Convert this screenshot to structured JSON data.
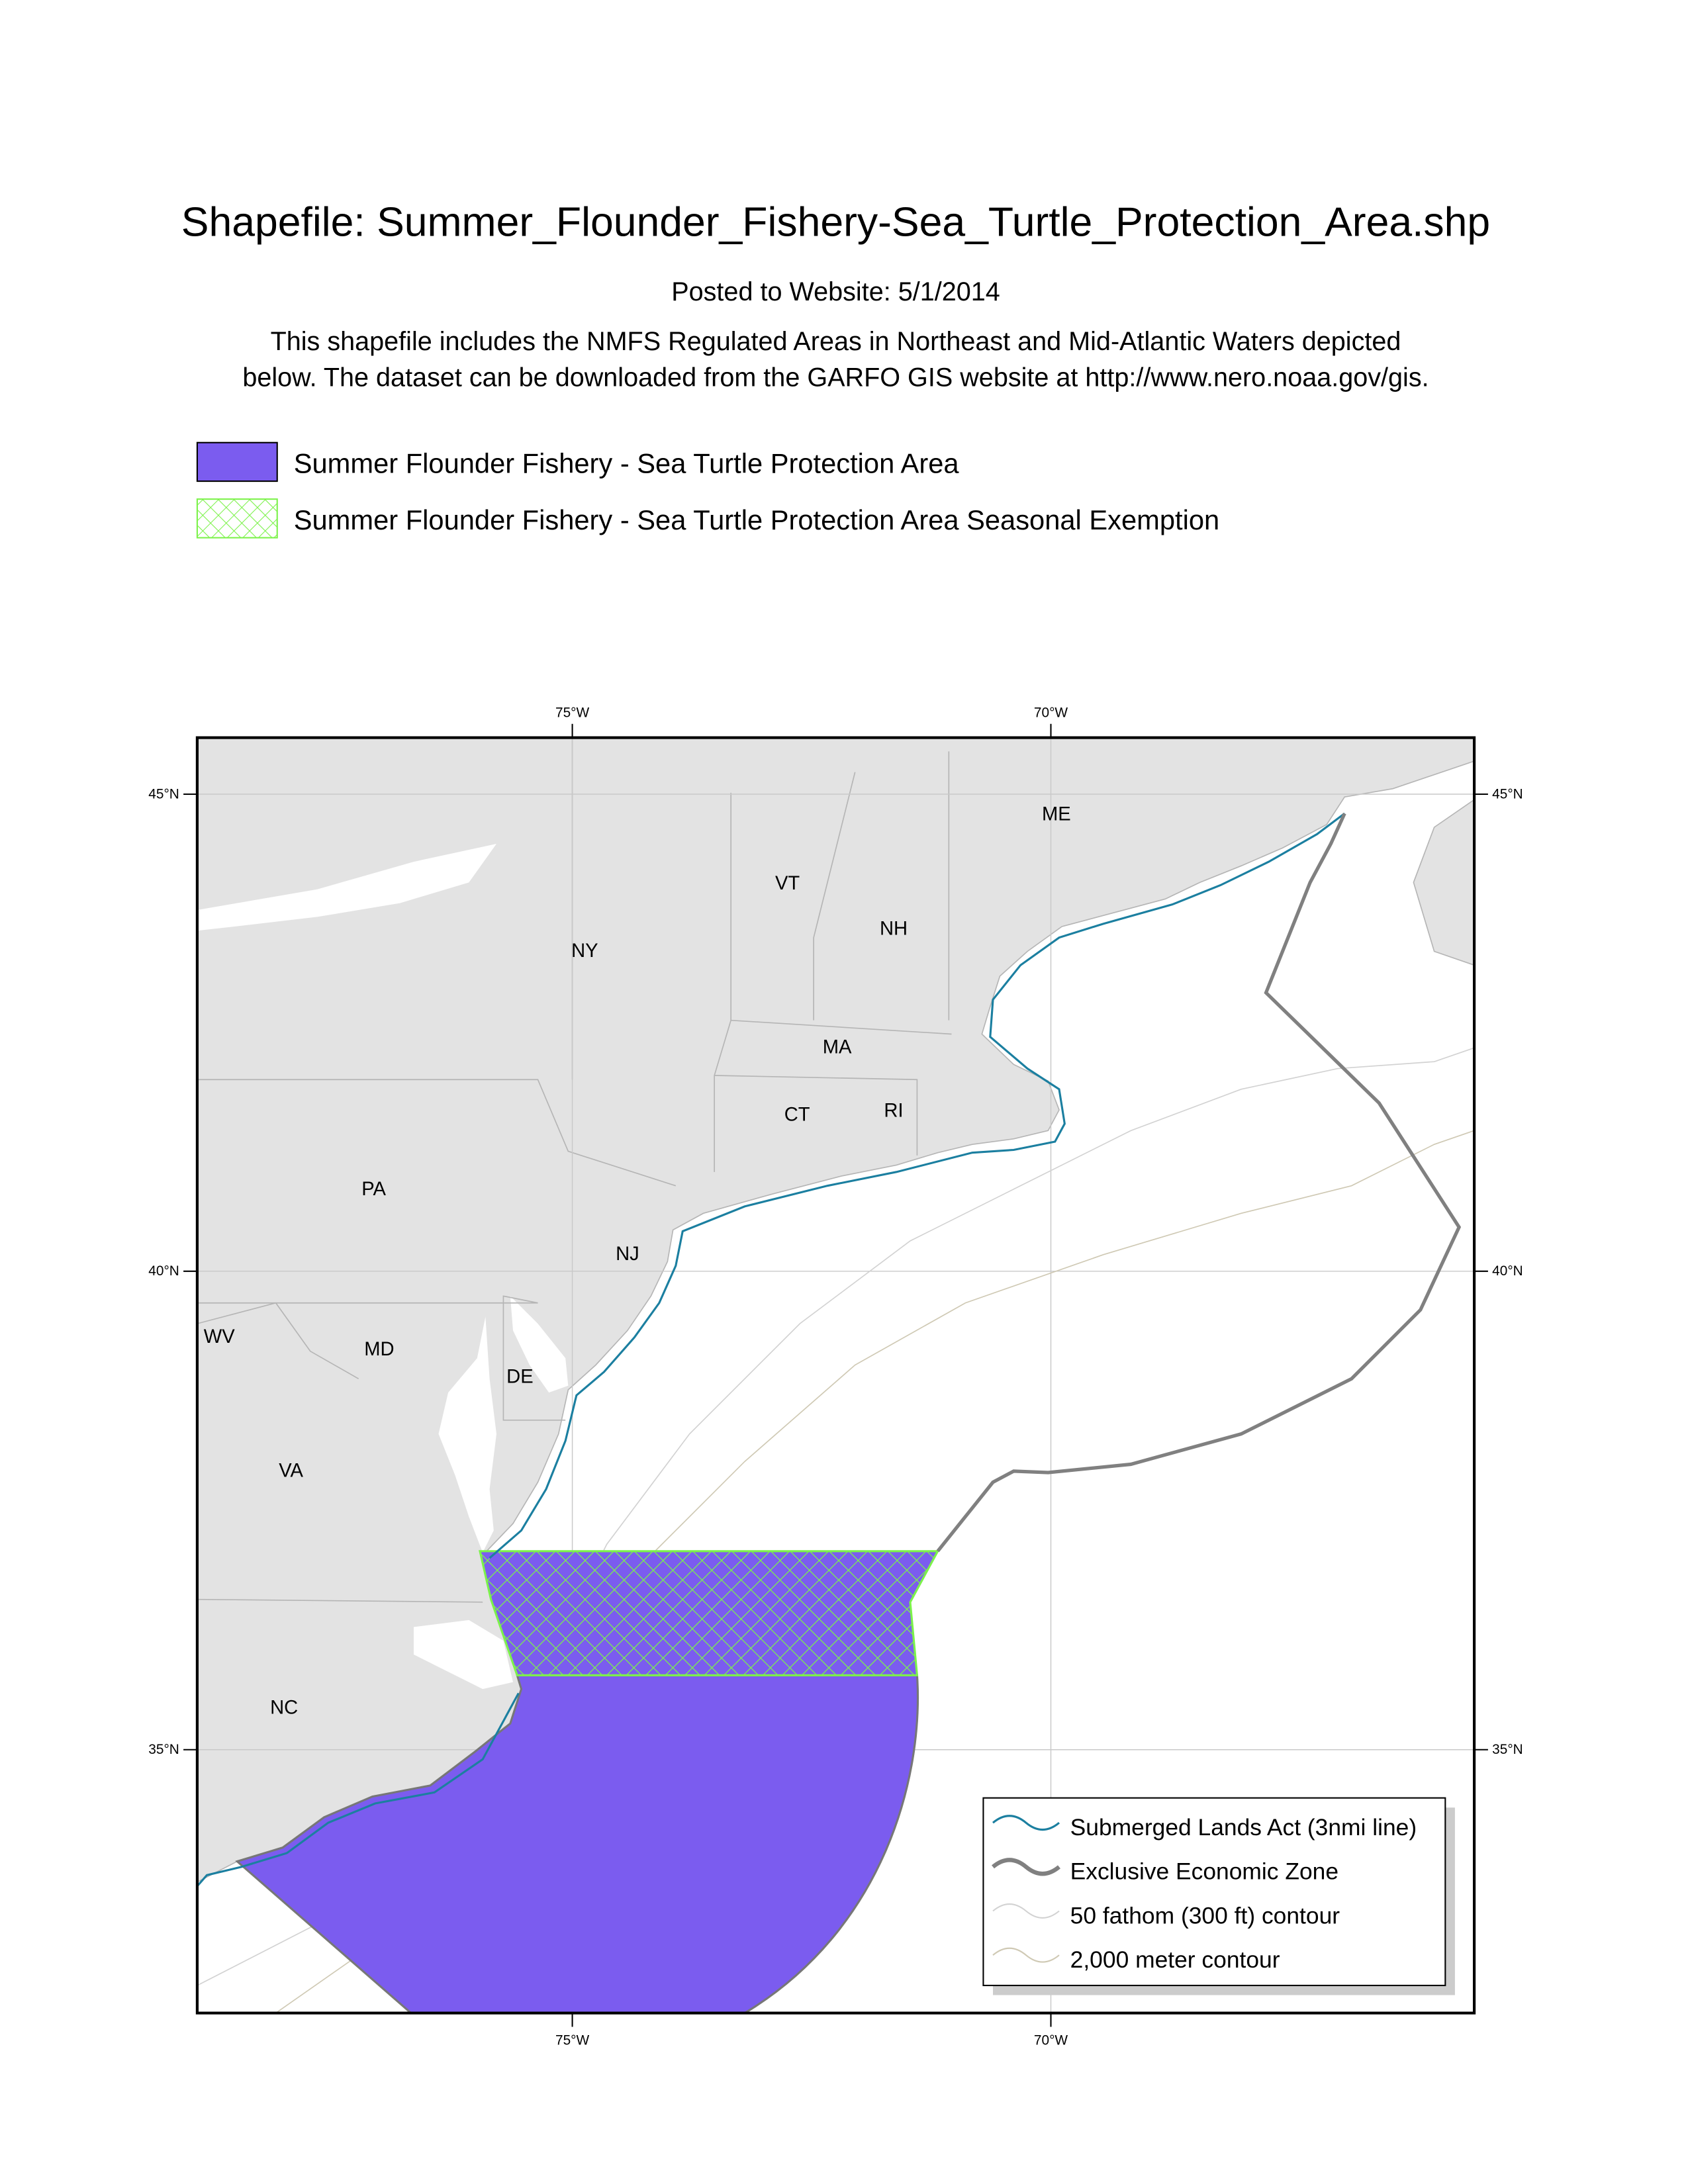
{
  "header": {
    "title": "Shapefile: Summer_Flounder_Fishery-Sea_Turtle_Protection_Area.shp",
    "posted": "Posted to Website: 5/1/2014",
    "description": [
      "This shapefile includes the NMFS Regulated Areas in Northeast and Mid-Atlantic Waters depicted",
      "below. The dataset can be downloaded from the GARFO GIS website at http://www.nero.noaa.gov/gis."
    ]
  },
  "legend": [
    "Summer Flounder Fishery - Sea Turtle Protection Area",
    "Summer Flounder Fishery - Sea Turtle Protection Area Seasonal Exemption"
  ],
  "map": {
    "longitude_labels": [
      "75°W",
      "70°W"
    ],
    "latitude_labels": [
      "45°N",
      "40°N",
      "35°N"
    ],
    "states": [
      "ME",
      "VT",
      "NH",
      "NY",
      "MA",
      "CT",
      "RI",
      "PA",
      "NJ",
      "WV",
      "MD",
      "DE",
      "VA",
      "NC"
    ],
    "legend": [
      "Submerged Lands Act (3nmi line)",
      "Exclusive Economic Zone",
      "50 fathom (300 ft) contour",
      "2,000 meter contour"
    ]
  }
}
